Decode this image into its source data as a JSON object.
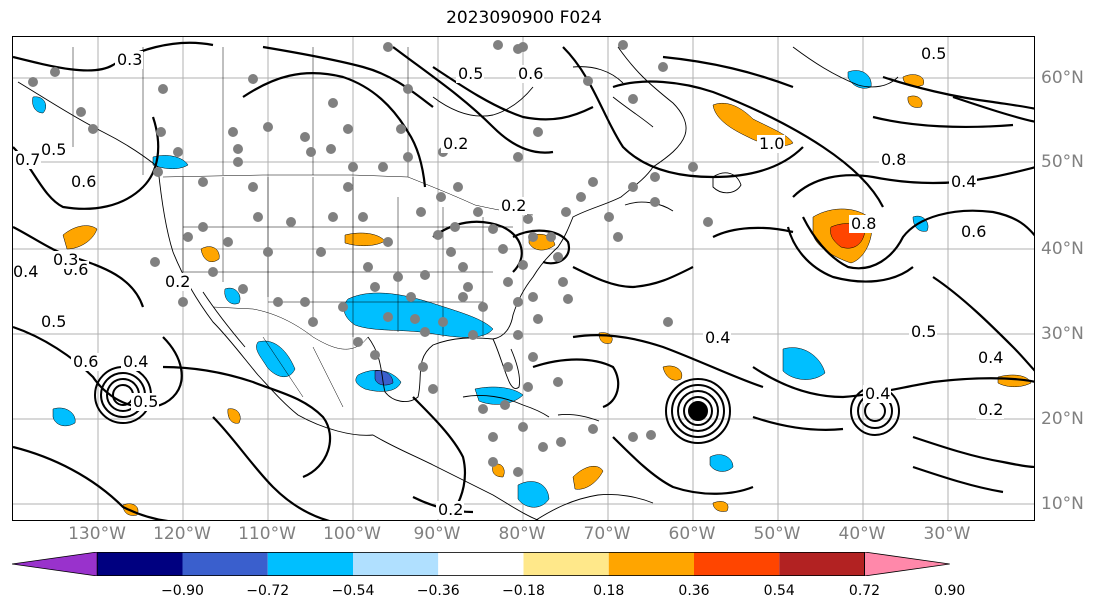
{
  "title": "2023090900 F024",
  "lon_labels": [
    "130°W",
    "120°W",
    "110°W",
    "100°W",
    "90°W",
    "80°W",
    "70°W",
    "60°W",
    "50°W",
    "40°W",
    "30°W"
  ],
  "lat_labels": [
    "60°N",
    "50°N",
    "40°N",
    "30°N",
    "20°N",
    "10°N"
  ],
  "contour_labels": [
    "0.3",
    "0.6",
    "0.5",
    "0.7",
    "0.6",
    "0.3",
    "0.4",
    "0.2",
    "0.5",
    "0.6",
    "0.5",
    "0.2",
    "0.4",
    "0.5",
    "0.6",
    "1.0",
    "0.8",
    "0.8",
    "0.5",
    "0.4",
    "0.6",
    "0.4",
    "0.4",
    "0.5",
    "0.4",
    "0.2",
    "0.2",
    "0.2"
  ],
  "colorbar": {
    "ticks": [
      "−0.90",
      "−0.72",
      "−0.54",
      "−0.36",
      "−0.18",
      "0.18",
      "0.36",
      "0.54",
      "0.72",
      "0.90"
    ],
    "colors": [
      "#9932cc",
      "#000080",
      "#3a5fcd",
      "#00bfff",
      "#b0e0ff",
      "#ffffff",
      "#ffe88a",
      "#ffa500",
      "#ff4500",
      "#b22222",
      "#ff88aa"
    ]
  },
  "legend_colors": {
    "warm": "#ffa500",
    "cold": "#00bfff",
    "deep_cold": "#3a5fcd",
    "hot": "#ff4500",
    "markers": "#808080"
  }
}
